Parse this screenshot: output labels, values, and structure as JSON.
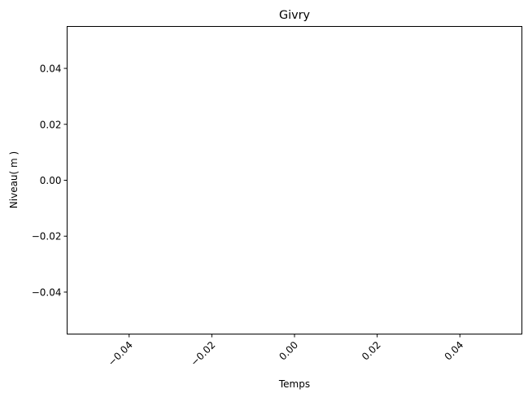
{
  "chart_data": {
    "type": "line",
    "title": "Givry",
    "xlabel": "Temps",
    "ylabel": "Niveau( m )",
    "xlim": [
      -0.055,
      0.055
    ],
    "ylim": [
      -0.055,
      0.055
    ],
    "xticks": [
      -0.04,
      -0.02,
      0.0,
      0.02,
      0.04
    ],
    "xtick_labels": [
      "−0.04",
      "−0.02",
      "0.00",
      "0.02",
      "0.04"
    ],
    "yticks": [
      -0.04,
      -0.02,
      0.0,
      0.02,
      0.04
    ],
    "ytick_labels": [
      "−0.04",
      "−0.02",
      "0.00",
      "0.02",
      "0.04"
    ],
    "xtick_rotation": 45,
    "grid": false,
    "series": []
  }
}
